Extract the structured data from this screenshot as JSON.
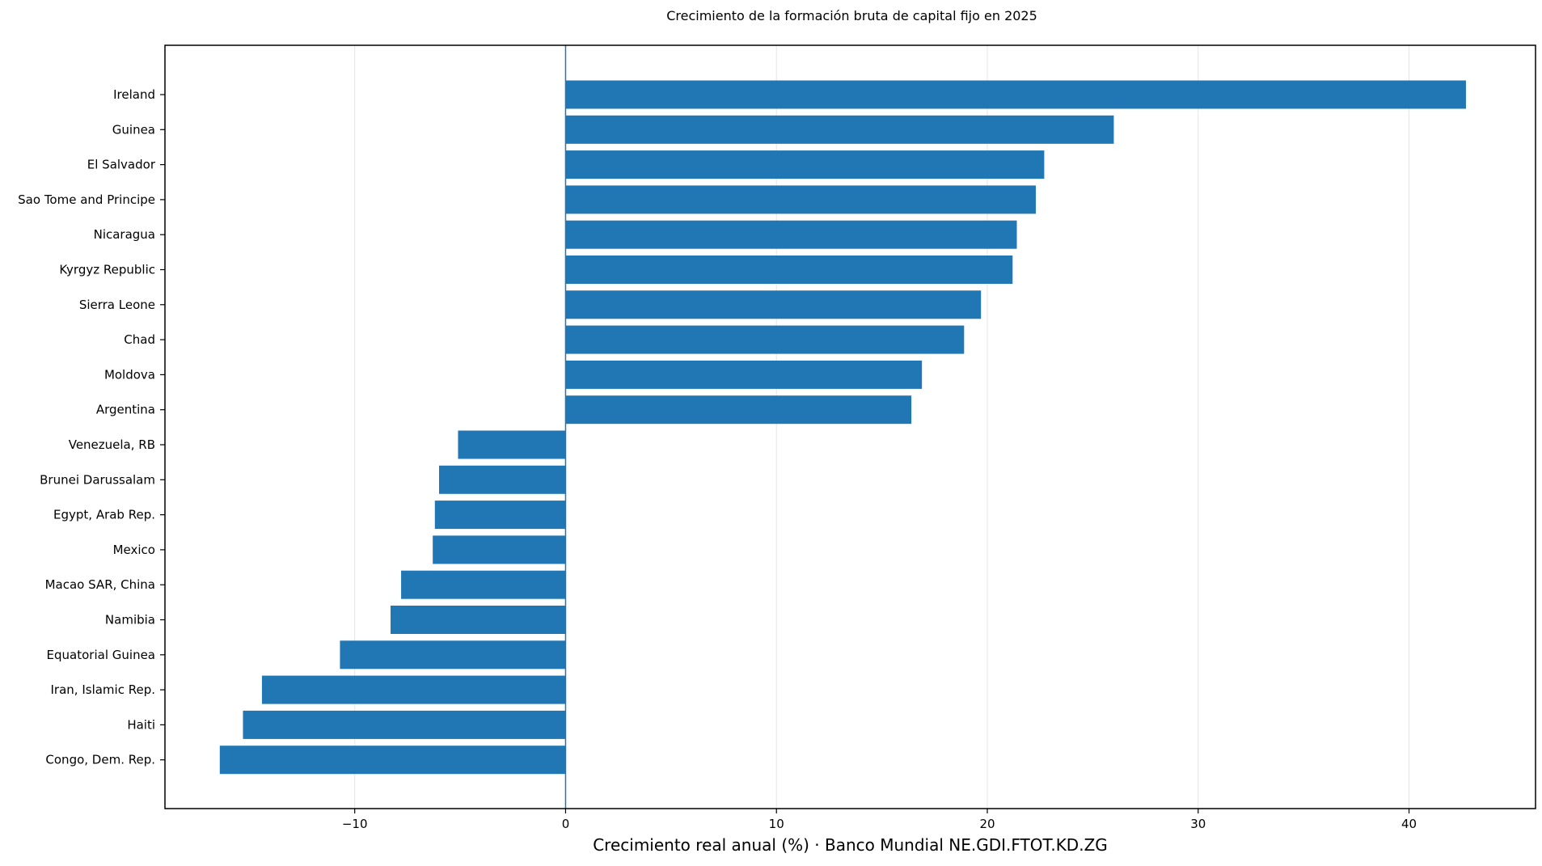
{
  "chart_data": {
    "type": "bar",
    "orientation": "horizontal",
    "title": "Crecimiento de la formación bruta de capital fijo en 2025",
    "xlabel": "Crecimiento real anual (%) · Banco Mundial NE.GDI.FTOT.KD.ZG",
    "ylabel": "",
    "xlim": [
      -19,
      46
    ],
    "xticks": [
      -10,
      0,
      10,
      20,
      30,
      40
    ],
    "xtick_labels": [
      "−10",
      "0",
      "10",
      "20",
      "30",
      "40"
    ],
    "grid": "vertical",
    "zero_line": true,
    "bar_color": "#2077b4",
    "categories": [
      "Ireland",
      "Guinea",
      "El Salvador",
      "Sao Tome and Principe",
      "Nicaragua",
      "Kyrgyz Republic",
      "Sierra Leone",
      "Chad",
      "Moldova",
      "Argentina",
      "Venezuela, RB",
      "Brunei Darussalam",
      "Egypt, Arab Rep.",
      "Mexico",
      "Macao SAR, China",
      "Namibia",
      "Equatorial Guinea",
      "Iran, Islamic Rep.",
      "Haiti",
      "Congo, Dem. Rep."
    ],
    "values": [
      42.7,
      26.0,
      22.7,
      22.3,
      21.4,
      21.2,
      19.7,
      18.9,
      16.9,
      16.4,
      -5.1,
      -6.0,
      -6.2,
      -6.3,
      -7.8,
      -8.3,
      -10.7,
      -14.4,
      -15.3,
      -16.4
    ]
  }
}
